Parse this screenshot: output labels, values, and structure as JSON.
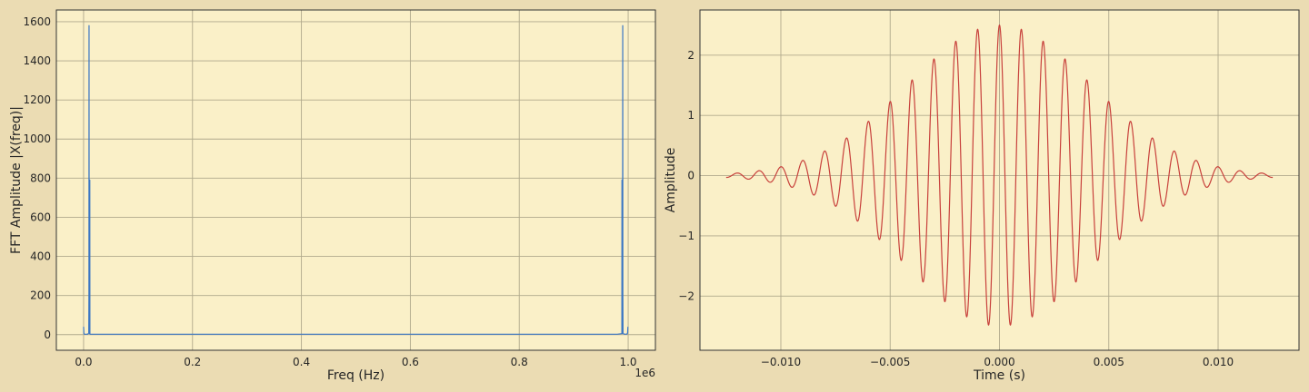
{
  "figure": {
    "background": "#ebdcb3"
  },
  "chart_data": [
    {
      "type": "line",
      "xlabel": "Freq (Hz)",
      "ylabel": "FFT Amplitude |X(freq)|",
      "x_offset_text": "1e6",
      "xlim": [
        -0.05,
        1.05
      ],
      "ylim": [
        -80,
        1660
      ],
      "xticks": [
        0.0,
        0.2,
        0.4,
        0.6,
        0.8,
        1.0
      ],
      "xtick_labels": [
        "0.0",
        "0.2",
        "0.4",
        "0.6",
        "0.8",
        "1.0"
      ],
      "yticks": [
        0,
        200,
        400,
        600,
        800,
        1000,
        1200,
        1400,
        1600
      ],
      "ytick_labels": [
        "0",
        "200",
        "400",
        "600",
        "800",
        "1000",
        "1200",
        "1400",
        "1600"
      ],
      "grid": true,
      "legend": "none",
      "colors": {
        "face": "#faf0c8",
        "grid": "#b0a98c",
        "line": "#3a76c4",
        "spine": "#333333"
      },
      "series": [
        {
          "x": [
            0.0,
            0.0005,
            0.001,
            0.002,
            0.004,
            0.006,
            0.008,
            0.0095,
            0.0098,
            0.01,
            0.0102,
            0.0105,
            0.011,
            0.0112,
            0.0114,
            0.0116,
            0.012,
            0.02,
            0.1,
            0.2,
            0.3,
            0.4,
            0.5,
            0.6,
            0.7,
            0.8,
            0.9,
            0.98,
            0.9884,
            0.9886,
            0.9888,
            0.989,
            0.9895,
            0.9898,
            0.99,
            0.9902,
            0.9905,
            0.992,
            0.995,
            0.998,
            0.999,
            0.9995
          ],
          "y": [
            40,
            10,
            3,
            2,
            2,
            2,
            3,
            8,
            200,
            1580,
            600,
            30,
            5,
            790,
            790,
            5,
            2,
            2,
            2,
            2,
            2,
            2,
            2,
            2,
            2,
            2,
            2,
            2,
            5,
            790,
            790,
            5,
            30,
            600,
            1580,
            200,
            8,
            3,
            2,
            3,
            10,
            40
          ]
        }
      ]
    },
    {
      "type": "line",
      "xlabel": "Time (s)",
      "ylabel": "Amplitude",
      "xlim": [
        -0.0137,
        0.0137
      ],
      "ylim": [
        -2.9,
        2.75
      ],
      "xticks": [
        -0.01,
        -0.005,
        0.0,
        0.005,
        0.01
      ],
      "xtick_labels": [
        "−0.010",
        "−0.005",
        "0.000",
        "0.005",
        "0.010"
      ],
      "yticks": [
        -2,
        -1,
        0,
        1,
        2
      ],
      "ytick_labels": [
        "−2",
        "−1",
        "0",
        "1",
        "2"
      ],
      "grid": true,
      "legend": "none",
      "colors": {
        "face": "#faf0c8",
        "grid": "#b0a98c",
        "line": "#c8413c",
        "spine": "#333333"
      },
      "series": [
        {
          "waveform": {
            "t_start": -0.0125,
            "t_end": 0.0125,
            "peak_amplitude": 2.5,
            "carrier_frequency_hz": 1000,
            "envelope_sigma_s": 0.0042
          }
        }
      ]
    }
  ]
}
